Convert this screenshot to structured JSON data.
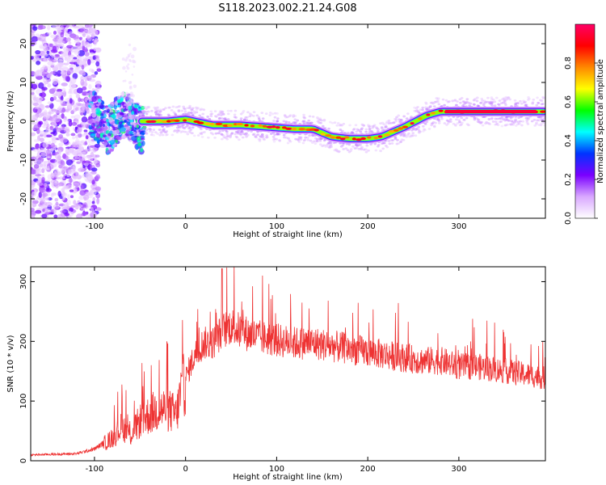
{
  "title": "S118.2023.002.21.24.G08",
  "chart_data": [
    {
      "type": "heatmap",
      "xlabel": "Height of straight line (km)",
      "ylabel": "Frequency (Hz)",
      "xlim": [
        -170,
        395
      ],
      "ylim": [
        -25,
        25
      ],
      "x_ticks": [
        -100,
        0,
        100,
        200,
        300
      ],
      "y_ticks": [
        -20,
        -10,
        0,
        10,
        20
      ],
      "colorbar": {
        "label": "Normalized spectral amplitude",
        "range": [
          0,
          1
        ],
        "ticks": [
          0.0,
          0.2,
          0.4,
          0.6,
          0.8
        ],
        "colormap": [
          "#ffffff",
          "#d9a8ff",
          "#7a00ff",
          "#0033ff",
          "#00ffff",
          "#00ff00",
          "#ffff00",
          "#ff8800",
          "#ff0000",
          "#ff0066"
        ]
      },
      "ridge_frequency": {
        "x": [
          -50,
          -20,
          0,
          30,
          60,
          90,
          120,
          140,
          160,
          180,
          200,
          215,
          240,
          265,
          280,
          290,
          320,
          350,
          395
        ],
        "y": [
          0,
          0,
          0.5,
          -1,
          -1,
          -1.5,
          -2,
          -2,
          -4,
          -4.5,
          -4.5,
          -4,
          -1.5,
          1.5,
          2.5,
          2.5,
          2.5,
          2.5,
          2.5
        ]
      }
    },
    {
      "type": "line",
      "xlabel": "Height of straight line (km)",
      "ylabel": "SNR (10 * v/v)",
      "xlim": [
        -170,
        395
      ],
      "ylim": [
        0,
        325
      ],
      "x_ticks": [
        -100,
        0,
        100,
        200,
        300
      ],
      "y_ticks": [
        0,
        100,
        200,
        300
      ],
      "line_color": "#ee3333",
      "envelope": {
        "x": [
          -170,
          -120,
          -100,
          -80,
          -70,
          -60,
          -50,
          -40,
          -30,
          -20,
          -10,
          -5,
          0,
          10,
          20,
          30,
          40,
          50,
          60,
          80,
          100,
          120,
          140,
          160,
          180,
          200,
          220,
          240,
          260,
          280,
          300,
          320,
          340,
          360,
          380,
          395
        ],
        "y": [
          10,
          12,
          20,
          40,
          60,
          45,
          70,
          80,
          90,
          90,
          80,
          120,
          140,
          180,
          200,
          200,
          220,
          230,
          220,
          210,
          205,
          200,
          200,
          195,
          190,
          185,
          180,
          175,
          170,
          170,
          160,
          160,
          155,
          150,
          145,
          140
        ]
      },
      "peak": {
        "x": 40,
        "y": 322
      }
    }
  ]
}
